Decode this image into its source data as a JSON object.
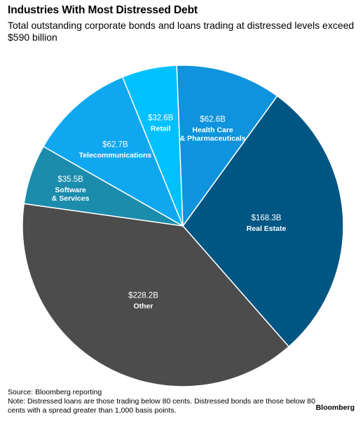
{
  "header": {
    "title": "Industries With Most Distressed Debt",
    "subtitle": "Total outstanding corporate bonds and loans trading at distressed levels exceed $590 billion"
  },
  "chart_data": {
    "type": "pie",
    "start_angle_deg": 36,
    "direction": "clockwise",
    "slices": [
      {
        "value": 168.3,
        "value_label": "$168.3B",
        "name_lines": [
          "Real Estate"
        ],
        "color": "#005683"
      },
      {
        "value": 228.2,
        "value_label": "$228.2B",
        "name_lines": [
          "Other"
        ],
        "color": "#4c4c4c"
      },
      {
        "value": 35.5,
        "value_label": "$35.5B",
        "name_lines": [
          "Software",
          "& Services"
        ],
        "color": "#1b8cac"
      },
      {
        "value": 62.7,
        "value_label": "$62.7B",
        "name_lines": [
          "Telecommunications"
        ],
        "color": "#0fa8f0"
      },
      {
        "value": 32.6,
        "value_label": "$32.6B",
        "name_lines": [
          "Retail"
        ],
        "color": "#00c0ff"
      },
      {
        "value": 62.6,
        "value_label": "$62.6B",
        "name_lines": [
          "Health Care",
          "& Pharmaceuticals"
        ],
        "color": "#0e93dc"
      }
    ]
  },
  "footer": {
    "source": "Source: Bloomberg reporting",
    "note": "Note: Distressed loans are those trading below 80 cents. Distressed bonds are those below 80 cents with a spread greater than 1,000 basis points.",
    "brand": "Bloomberg"
  }
}
